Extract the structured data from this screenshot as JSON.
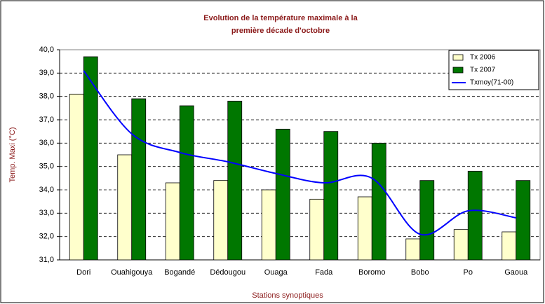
{
  "chart_data": {
    "type": "bar",
    "title": [
      "Evolution de la température maximale à la",
      "première décade d'octobre"
    ],
    "x_label": "Stations synoptiques",
    "y_label": "Temp. Maxi (°C)",
    "categories": [
      "Dori",
      "Ouahigouya",
      "Bogandé",
      "Dédougou",
      "Ouaga",
      "Fada",
      "Boromo",
      "Bobo",
      "Po",
      "Gaoua"
    ],
    "series": [
      {
        "name": "Tx 2006",
        "type": "bar",
        "color": "#ffffcc",
        "values": [
          38.1,
          35.5,
          34.3,
          34.4,
          34.0,
          33.6,
          33.7,
          31.9,
          32.3,
          32.2
        ]
      },
      {
        "name": "Tx 2007",
        "type": "bar",
        "color": "#007700",
        "values": [
          39.7,
          37.9,
          37.6,
          37.8,
          36.6,
          36.5,
          36.0,
          34.4,
          34.8,
          34.4
        ]
      },
      {
        "name": "Txmoy(71-00)",
        "type": "line",
        "color": "#0000ff",
        "values": [
          39.1,
          36.4,
          35.6,
          35.2,
          34.7,
          34.3,
          34.5,
          32.1,
          33.1,
          32.8
        ]
      }
    ],
    "ylim": [
      31,
      40
    ],
    "yticks": [
      {
        "value": 31,
        "label": "31,0"
      },
      {
        "value": 32,
        "label": "32,0"
      },
      {
        "value": 33,
        "label": "33,0"
      },
      {
        "value": 34,
        "label": "34,0"
      },
      {
        "value": 35,
        "label": "35,0"
      },
      {
        "value": 36,
        "label": "36,0"
      },
      {
        "value": 37,
        "label": "37,0"
      },
      {
        "value": 38,
        "label": "38,0"
      },
      {
        "value": 39,
        "label": "39,0"
      },
      {
        "value": 40,
        "label": "40,0"
      }
    ],
    "grid": true,
    "legend": "top-right"
  }
}
